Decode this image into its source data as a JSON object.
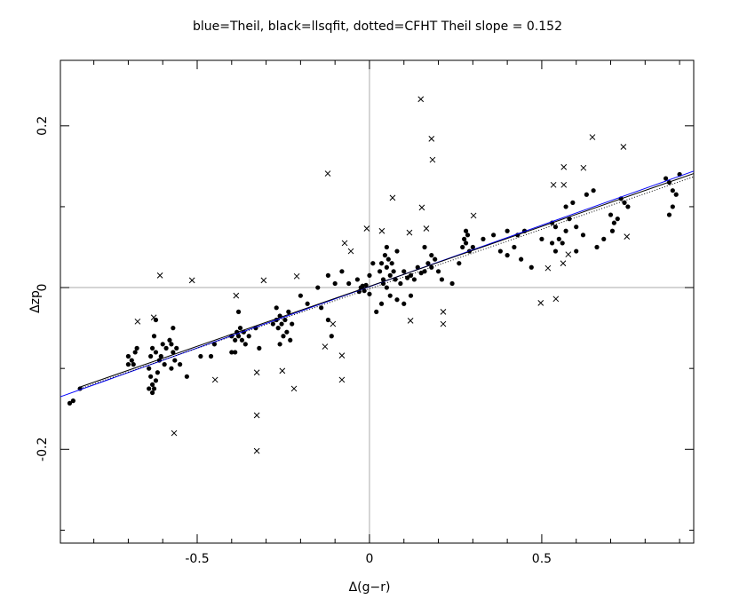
{
  "chart_data": {
    "type": "scatter",
    "title": "blue=Theil, black=llsqfit, dotted=CFHT   Theil slope =  0.152",
    "xlabel": "Δ(g−r)",
    "ylabel": "Δzp",
    "xlim": [
      -0.897,
      0.941
    ],
    "ylim": [
      -0.316,
      0.281
    ],
    "xticks": [
      -0.5,
      0,
      0.5
    ],
    "yticks": [
      -0.2,
      0,
      0.2
    ],
    "xminor": [
      -0.8,
      -0.7,
      -0.6,
      -0.4,
      -0.3,
      -0.2,
      -0.1,
      0.1,
      0.2,
      0.3,
      0.4,
      0.6,
      0.7,
      0.8,
      0.9
    ],
    "yminor": [
      -0.3,
      -0.1,
      0.1
    ],
    "zero_lines": true,
    "series": [
      {
        "marker": "dot",
        "color": "#000000",
        "x": [
          -0.87,
          -0.86,
          -0.84,
          -0.7,
          -0.69,
          -0.68,
          -0.685,
          -0.675,
          -0.7,
          -0.64,
          -0.635,
          -0.63,
          -0.625,
          -0.64,
          -0.63,
          -0.62,
          -0.615,
          -0.63,
          -0.62,
          -0.61,
          -0.6,
          -0.625,
          -0.605,
          -0.595,
          -0.59,
          -0.62,
          -0.635,
          -0.58,
          -0.575,
          -0.57,
          -0.565,
          -0.56,
          -0.55,
          -0.575,
          -0.57,
          -0.53,
          -0.49,
          -0.46,
          -0.45,
          -0.4,
          -0.39,
          -0.385,
          -0.38,
          -0.375,
          -0.37,
          -0.365,
          -0.38,
          -0.39,
          -0.4,
          -0.36,
          -0.35,
          -0.33,
          -0.32,
          -0.28,
          -0.27,
          -0.265,
          -0.26,
          -0.255,
          -0.25,
          -0.245,
          -0.24,
          -0.235,
          -0.23,
          -0.27,
          -0.26,
          -0.225,
          -0.2,
          -0.18,
          -0.15,
          -0.14,
          -0.12,
          -0.11,
          -0.12,
          -0.1,
          -0.08,
          -0.06,
          -0.03,
          -0.025,
          -0.02,
          -0.015,
          -0.01,
          0.0,
          -0.035,
          0.03,
          0.035,
          0.04,
          0.045,
          0.05,
          0.055,
          0.06,
          0.065,
          0.07,
          0.075,
          0.04,
          0.05,
          0.06,
          0.035,
          0.02,
          0.0,
          0.01,
          0.08,
          0.05,
          0.09,
          0.1,
          0.11,
          0.12,
          0.13,
          0.14,
          0.15,
          0.16,
          0.17,
          0.18,
          0.19,
          0.2,
          0.12,
          0.1,
          0.08,
          0.16,
          0.18,
          0.21,
          0.24,
          0.26,
          0.27,
          0.275,
          0.28,
          0.285,
          0.29,
          0.3,
          0.28,
          0.33,
          0.36,
          0.38,
          0.4,
          0.42,
          0.43,
          0.45,
          0.44,
          0.47,
          0.4,
          0.5,
          0.53,
          0.54,
          0.55,
          0.56,
          0.57,
          0.58,
          0.6,
          0.62,
          0.53,
          0.54,
          0.57,
          0.59,
          0.6,
          0.63,
          0.65,
          0.66,
          0.68,
          0.7,
          0.71,
          0.72,
          0.705,
          0.73,
          0.74,
          0.75,
          0.86,
          0.87,
          0.88,
          0.88,
          0.89,
          0.87,
          0.9
        ],
        "y": [
          -0.143,
          -0.14,
          -0.125,
          -0.085,
          -0.09,
          -0.08,
          -0.095,
          -0.075,
          -0.095,
          -0.1,
          -0.11,
          -0.12,
          -0.125,
          -0.125,
          -0.13,
          -0.115,
          -0.105,
          -0.075,
          -0.08,
          -0.09,
          -0.07,
          -0.06,
          -0.085,
          -0.095,
          -0.075,
          -0.04,
          -0.085,
          -0.065,
          -0.07,
          -0.08,
          -0.09,
          -0.075,
          -0.095,
          -0.1,
          -0.05,
          -0.11,
          -0.085,
          -0.085,
          -0.07,
          -0.06,
          -0.065,
          -0.055,
          -0.06,
          -0.05,
          -0.065,
          -0.055,
          -0.03,
          -0.08,
          -0.08,
          -0.07,
          -0.06,
          -0.05,
          -0.075,
          -0.045,
          -0.04,
          -0.05,
          -0.035,
          -0.045,
          -0.06,
          -0.04,
          -0.055,
          -0.03,
          -0.065,
          -0.025,
          -0.07,
          -0.045,
          -0.01,
          -0.02,
          0.0,
          -0.025,
          -0.04,
          -0.06,
          0.015,
          0.005,
          0.02,
          0.005,
          -0.005,
          0.0,
          0.002,
          -0.004,
          0.003,
          -0.008,
          0.01,
          0.02,
          0.03,
          0.01,
          0.04,
          0.025,
          0.035,
          0.015,
          0.03,
          0.02,
          0.01,
          0.005,
          0.0,
          -0.01,
          -0.02,
          -0.03,
          0.015,
          0.03,
          0.045,
          0.05,
          0.005,
          0.02,
          0.012,
          0.015,
          0.01,
          0.025,
          0.018,
          0.02,
          0.03,
          0.025,
          0.035,
          0.02,
          -0.01,
          -0.02,
          -0.015,
          0.05,
          0.04,
          0.01,
          0.005,
          0.03,
          0.05,
          0.06,
          0.055,
          0.065,
          0.045,
          0.05,
          0.07,
          0.06,
          0.065,
          0.045,
          0.04,
          0.05,
          0.065,
          0.07,
          0.035,
          0.025,
          0.07,
          0.06,
          0.08,
          0.075,
          0.06,
          0.055,
          0.07,
          0.085,
          0.075,
          0.065,
          0.055,
          0.045,
          0.1,
          0.105,
          0.045,
          0.115,
          0.12,
          0.05,
          0.06,
          0.09,
          0.08,
          0.085,
          0.07,
          0.11,
          0.105,
          0.1,
          0.135,
          0.13,
          0.12,
          0.1,
          0.115,
          0.09,
          0.14
        ]
      },
      {
        "marker": "cross",
        "color": "#000000",
        "x": [
          0.149,
          0.18,
          0.183,
          0.152,
          -0.121,
          0.647,
          0.737,
          0.621,
          0.564,
          0.534,
          0.564,
          0.067,
          0.302,
          0.116,
          0.165,
          -0.008,
          0.036,
          -0.072,
          -0.054,
          -0.211,
          -0.307,
          -0.515,
          -0.608,
          -0.387,
          -0.673,
          -0.626,
          -0.106,
          -0.129,
          -0.08,
          -0.08,
          -0.448,
          -0.253,
          -0.219,
          -0.327,
          -0.327,
          -0.327,
          -0.567,
          0.119,
          0.214,
          0.214,
          0.497,
          0.541,
          0.562,
          0.577,
          0.747,
          0.518
        ],
        "y": [
          0.233,
          0.184,
          0.158,
          0.099,
          0.141,
          0.186,
          0.174,
          0.148,
          0.149,
          0.127,
          0.127,
          0.111,
          0.089,
          0.068,
          0.073,
          0.073,
          0.07,
          0.055,
          0.045,
          0.014,
          0.009,
          0.009,
          0.015,
          -0.01,
          -0.042,
          -0.037,
          -0.045,
          -0.073,
          -0.084,
          -0.114,
          -0.114,
          -0.103,
          -0.125,
          -0.105,
          -0.158,
          -0.202,
          -0.18,
          -0.041,
          -0.03,
          -0.045,
          -0.019,
          -0.014,
          0.03,
          0.041,
          0.063,
          0.024
        ]
      }
    ],
    "lines": [
      {
        "color": "#0000ff",
        "style": "solid",
        "x": [
          -0.897,
          0.941
        ],
        "y": [
          -0.135,
          0.144
        ]
      },
      {
        "color": "#000000",
        "style": "solid",
        "x": [
          -0.84,
          0.941
        ],
        "y": [
          -0.123,
          0.141
        ]
      },
      {
        "color": "#000000",
        "style": "dotted",
        "x": [
          -0.84,
          0.941
        ],
        "y": [
          -0.125,
          0.137
        ]
      }
    ]
  }
}
